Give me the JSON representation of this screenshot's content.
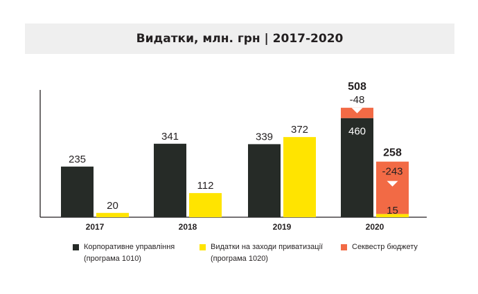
{
  "title": "Видатки, млн. грн  |  2017-2020",
  "colors": {
    "corporate": "#262b27",
    "privatization": "#ffe400",
    "sequester": "#f26a45",
    "axis": "#231f20"
  },
  "chart_data": {
    "type": "bar",
    "categories": [
      "2017",
      "2018",
      "2019",
      "2020"
    ],
    "series": [
      {
        "name": "Корпоративне управління (програма 1010)",
        "values": [
          235,
          341,
          339,
          460
        ]
      },
      {
        "name": "Видатки на заходи приватизації (програма 1020)",
        "values": [
          20,
          112,
          372,
          15
        ]
      },
      {
        "name": "Секвестр бюджету",
        "values": [
          null,
          null,
          null,
          null
        ]
      }
    ],
    "sequester": {
      "year": "2020",
      "corporate": {
        "before": 508,
        "cut": -48,
        "after": 460
      },
      "privatization": {
        "before": 258,
        "cut": -243,
        "after": 15
      }
    },
    "labels": {
      "corporate": [
        "235",
        "341",
        "339",
        "460"
      ],
      "privatization": [
        "20",
        "112",
        "372",
        "15"
      ],
      "corporate_total_2020": "508",
      "corporate_cut_2020": "-48",
      "privatization_total_2020": "258",
      "privatization_cut_2020": "-243"
    },
    "ylim": [
      0,
      520
    ]
  },
  "legend": [
    {
      "line1": "Корпоративне управління",
      "line2": "(програма 1010)",
      "color_key": "corporate"
    },
    {
      "line1": "Видатки на заходи приватизації",
      "line2": "(програма 1020)",
      "color_key": "privatization"
    },
    {
      "line1": "Секвестр бюджету",
      "line2": "",
      "color_key": "sequester"
    }
  ]
}
